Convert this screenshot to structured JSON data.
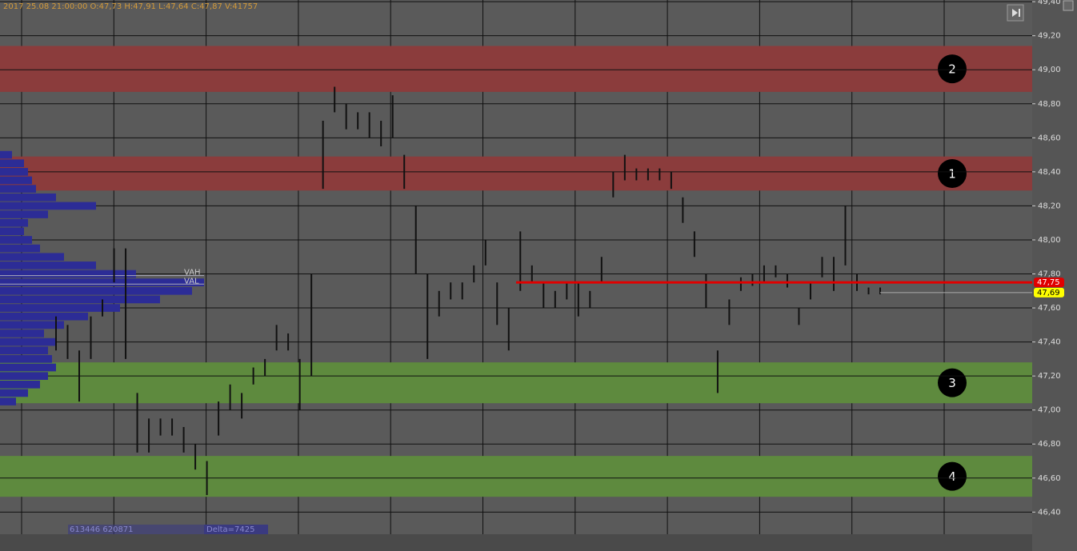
{
  "chart_data": {
    "type": "range-bars",
    "header": "2017 25.08 21:00:00  O:47,73  H:47,91  L:47,64  C:47,87  V:41757",
    "ylim": [
      46.27,
      49.41
    ],
    "yticks": [
      {
        "value": 46.4,
        "label": "46,40"
      },
      {
        "value": 46.6,
        "label": "46,60"
      },
      {
        "value": 46.8,
        "label": "46,80"
      },
      {
        "value": 47.0,
        "label": "47,00"
      },
      {
        "value": 47.2,
        "label": "47,20"
      },
      {
        "value": 47.4,
        "label": "47,40"
      },
      {
        "value": 47.6,
        "label": "47,60"
      },
      {
        "value": 47.8,
        "label": "47,80"
      },
      {
        "value": 48.0,
        "label": "48,00"
      },
      {
        "value": 48.2,
        "label": "48,20"
      },
      {
        "value": 48.4,
        "label": "48,40"
      },
      {
        "value": 48.6,
        "label": "48,60"
      },
      {
        "value": 48.8,
        "label": "48,80"
      },
      {
        "value": 49.0,
        "label": "49,00"
      },
      {
        "value": 49.2,
        "label": "49,20"
      },
      {
        "value": 49.4,
        "label": "49,40"
      }
    ],
    "zones": [
      {
        "label": "2",
        "from": 48.87,
        "to": 49.14,
        "color": "#8b3c3c"
      },
      {
        "label": "1",
        "from": 48.29,
        "to": 48.49,
        "color": "#8b3c3c"
      },
      {
        "label": "3",
        "from": 47.04,
        "to": 47.28,
        "color": "#5e8a3e"
      },
      {
        "label": "4",
        "from": 46.49,
        "to": 46.73,
        "color": "#5e8a3e"
      }
    ],
    "series": [
      {
        "color": "#111111",
        "low": [
          47.35,
          47.3,
          47.05,
          47.3,
          47.55,
          47.75,
          47.3,
          46.75,
          46.75,
          46.85,
          46.85,
          46.75,
          46.65,
          46.5,
          46.85,
          47.0,
          46.95,
          47.15,
          47.2,
          47.35,
          47.35,
          47.0,
          47.2,
          48.3,
          48.75,
          48.65,
          48.65,
          48.6,
          48.55,
          48.6,
          48.3,
          47.8,
          47.3,
          47.55,
          47.65,
          47.65,
          47.75,
          47.85,
          47.5,
          47.35,
          47.7,
          47.75,
          47.6,
          47.6,
          47.65,
          47.55,
          47.6,
          47.75,
          48.25,
          48.35,
          48.35,
          48.35,
          48.35,
          48.3,
          48.1,
          47.9,
          47.6,
          47.1,
          47.5,
          47.7,
          47.73,
          47.75,
          47.78,
          47.72,
          47.5,
          47.65,
          47.78,
          47.7,
          47.85,
          47.7,
          47.68,
          47.68
        ],
        "high": [
          47.55,
          47.5,
          47.35,
          47.55,
          47.65,
          47.95,
          47.95,
          47.1,
          46.95,
          46.95,
          46.95,
          46.9,
          46.8,
          46.7,
          47.05,
          47.15,
          47.1,
          47.25,
          47.3,
          47.5,
          47.45,
          47.3,
          47.8,
          48.7,
          48.9,
          48.8,
          48.75,
          48.75,
          48.7,
          48.85,
          48.5,
          48.2,
          47.8,
          47.7,
          47.75,
          47.75,
          47.85,
          48.0,
          47.75,
          47.6,
          48.05,
          47.85,
          47.75,
          47.7,
          47.75,
          47.75,
          47.7,
          47.9,
          48.4,
          48.5,
          48.42,
          48.42,
          48.42,
          48.4,
          48.25,
          48.05,
          47.8,
          47.35,
          47.65,
          47.78,
          47.8,
          47.85,
          47.85,
          47.8,
          47.6,
          47.75,
          47.9,
          47.9,
          48.2,
          47.8,
          47.72,
          47.72
        ]
      }
    ],
    "profile": {
      "color": "#2c2c96",
      "prices": [
        47.05,
        47.1,
        47.15,
        47.2,
        47.25,
        47.3,
        47.35,
        47.4,
        47.45,
        47.5,
        47.55,
        47.6,
        47.65,
        47.7,
        47.75,
        47.8,
        47.85,
        47.9,
        47.95,
        48.0,
        48.05,
        48.1,
        48.15,
        48.2,
        48.25,
        48.3,
        48.35,
        48.4,
        48.45,
        48.5
      ],
      "volumes": [
        20,
        35,
        50,
        60,
        70,
        65,
        60,
        70,
        55,
        80,
        110,
        150,
        200,
        240,
        255,
        170,
        120,
        80,
        50,
        40,
        30,
        35,
        60,
        120,
        70,
        45,
        40,
        35,
        30,
        15
      ]
    },
    "vah": {
      "label": "VAH",
      "value": 47.79
    },
    "val": {
      "label": "VAL",
      "value": 47.74
    },
    "level": {
      "value": 47.75,
      "label": "47,75",
      "color": "#e00000"
    },
    "last": {
      "value": 47.69,
      "label": "47,69",
      "color": "#ffff00"
    },
    "footer": {
      "volume": "613446 620871",
      "delta": "Delta=7425"
    }
  }
}
